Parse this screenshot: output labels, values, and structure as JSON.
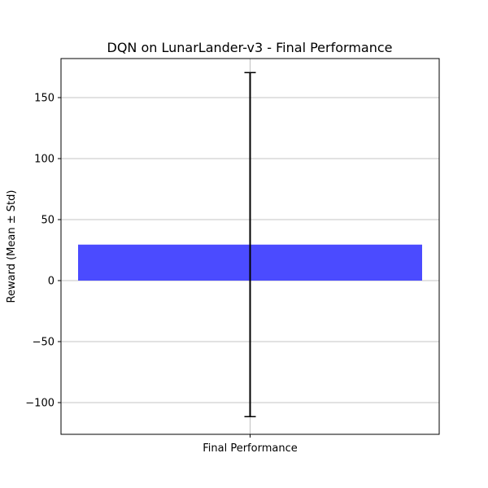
{
  "chart_data": {
    "type": "bar",
    "title": "DQN on LunarLander-v3 - Final Performance",
    "xlabel": "",
    "ylabel": "Reward (Mean ± Std)",
    "categories": [
      "Final Performance"
    ],
    "values": [
      29.5
    ],
    "error": [
      141.0
    ],
    "ylim": [
      -126,
      182
    ],
    "yticks": [
      -100,
      -50,
      0,
      50,
      100,
      150
    ],
    "ytick_labels": [
      "−100",
      "−50",
      "0",
      "50",
      "100",
      "150"
    ],
    "grid": true,
    "bar_color": "#4b4bff",
    "error_color": "#000000"
  }
}
